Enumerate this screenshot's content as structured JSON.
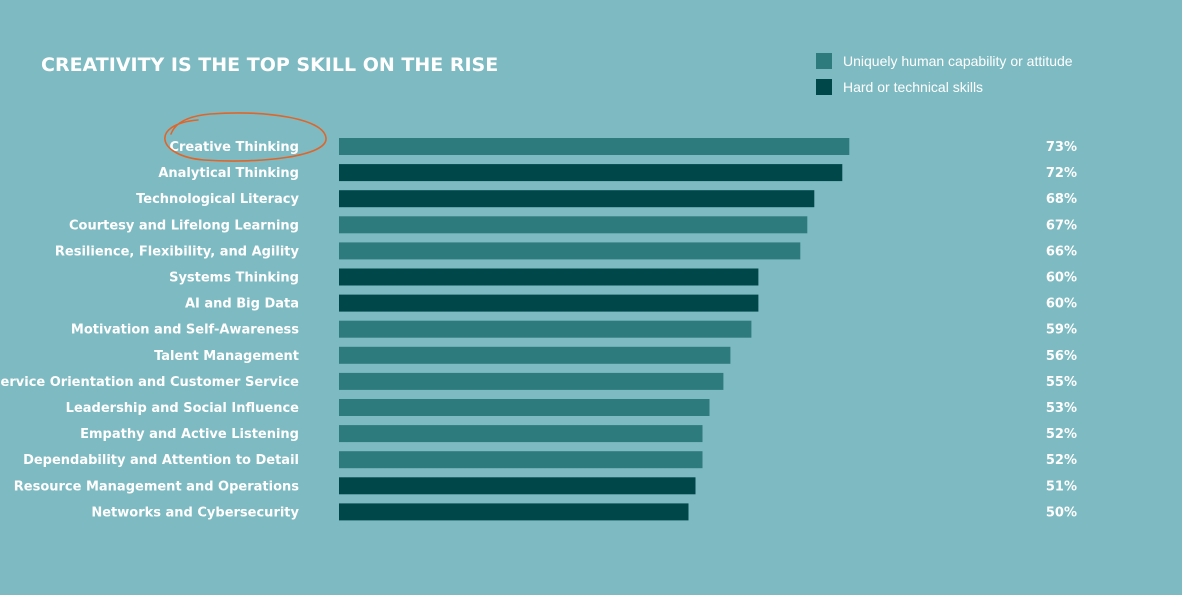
{
  "chart_data": {
    "type": "bar",
    "orientation": "horizontal",
    "title": "CREATIVITY IS THE TOP SKILL ON THE RISE",
    "legend": {
      "placement": "top-right",
      "items": [
        {
          "label": "Uniquely human capability or attitude",
          "color": "#2e7b7e"
        },
        {
          "label": "Hard or technical skills",
          "color": "#00474a"
        }
      ]
    },
    "highlight": {
      "category": "Creative Thinking",
      "color": "#e0652a",
      "style": "hand-drawn circle"
    },
    "categories": [
      "Creative Thinking",
      "Analytical Thinking",
      "Technological Literacy",
      "Courtesy and Lifelong Learning",
      "Resilience, Flexibility, and Agility",
      "Systems Thinking",
      "AI and Big Data",
      "Motivation and Self-Awareness",
      "Talent Management",
      "Service Orientation and Customer Service",
      "Leadership and Social Influence",
      "Empathy and Active Listening",
      "Dependability and Attention to Detail",
      "Resource Management and Operations",
      "Networks and Cybersecurity"
    ],
    "values": [
      73,
      72,
      68,
      67,
      66,
      60,
      60,
      59,
      56,
      55,
      53,
      52,
      52,
      51,
      50
    ],
    "value_labels": [
      "73%",
      "72%",
      "68%",
      "67%",
      "66%",
      "60%",
      "60%",
      "59%",
      "56%",
      "55%",
      "53%",
      "52%",
      "52%",
      "51%",
      "50%"
    ],
    "series_type": [
      0,
      1,
      1,
      0,
      0,
      1,
      1,
      0,
      0,
      0,
      0,
      0,
      0,
      1,
      1
    ],
    "grid": false
  }
}
